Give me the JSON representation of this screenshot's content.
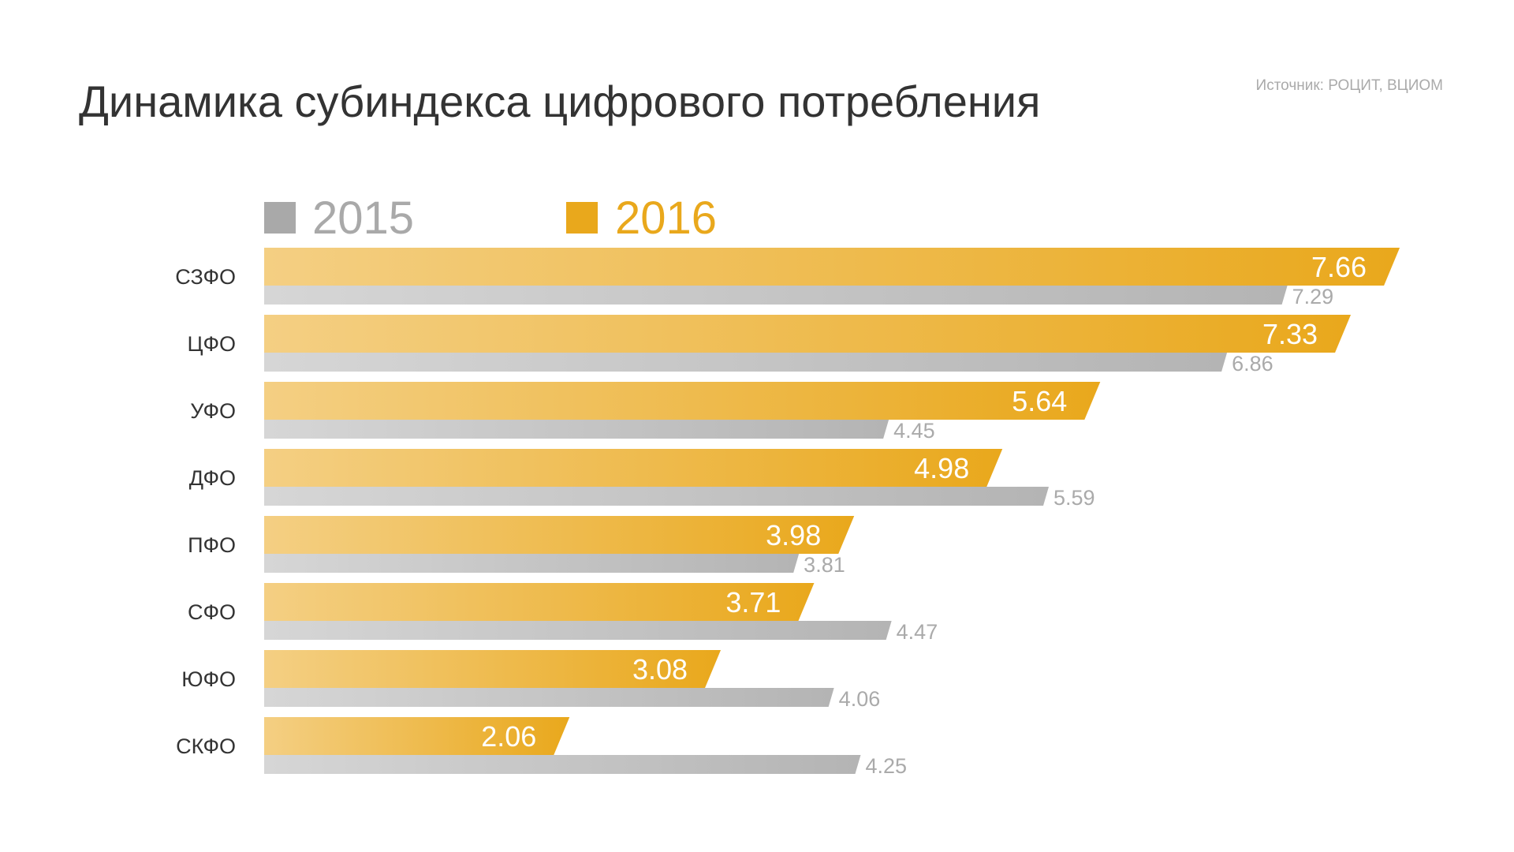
{
  "chart_data": {
    "type": "bar",
    "orientation": "horizontal",
    "title": "Динамика субиндекса цифрового потребления",
    "source": "Источник: РОЦИТ, ВЦИОМ",
    "categories": [
      "СЗФО",
      "ЦФО",
      "УФО",
      "ДФО",
      "ПФО",
      "СФО",
      "ЮФО",
      "СКФО"
    ],
    "series": [
      {
        "name": "2016",
        "color": "#e9a81c",
        "values": [
          7.66,
          7.33,
          5.64,
          4.98,
          3.98,
          3.71,
          3.08,
          2.06
        ]
      },
      {
        "name": "2015",
        "color": "#a9a9a9",
        "values": [
          7.29,
          6.86,
          4.45,
          5.59,
          3.81,
          4.47,
          4.06,
          4.25
        ]
      }
    ],
    "legend": "top-left",
    "grid": false,
    "xlabel": "",
    "ylabel": ""
  }
}
